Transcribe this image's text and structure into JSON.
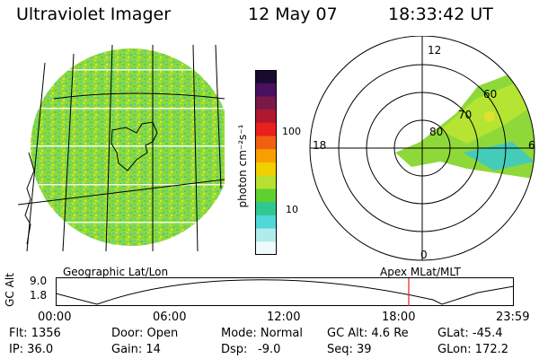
{
  "header": {
    "title": "Ultraviolet Imager",
    "date": "12 May 07",
    "time": "18:33:42 UT"
  },
  "colorbar": {
    "label": "photon cm⁻²s⁻¹",
    "ticks": [
      "100",
      "10"
    ],
    "colors": [
      "#1a0a2e",
      "#4a1060",
      "#7a1848",
      "#b01830",
      "#e82020",
      "#f06010",
      "#f8a000",
      "#f0d000",
      "#b8e030",
      "#60d030",
      "#30c890",
      "#50d8d8",
      "#b0ecec",
      "#f0fafa"
    ]
  },
  "polar": {
    "hours": {
      "top": "12",
      "left": "18",
      "right": "6",
      "bottom": "0"
    },
    "rings": [
      "80",
      "70",
      "60"
    ]
  },
  "labels": {
    "left_panel": "Geographic Lat/Lon",
    "right_panel": "Apex MLat/MLT"
  },
  "altitude_plot": {
    "ylabel": "GC Alt",
    "yticks": [
      "9.0",
      "1.8"
    ],
    "xticks": [
      "00:00",
      "06:00",
      "12:00",
      "18:00",
      "23:59"
    ],
    "marker_time": "18:33"
  },
  "info": {
    "flt": "Flt: 1356",
    "ip": "IP: 36.0",
    "door": "Door: Open",
    "gain": "Gain: 14",
    "mode": "Mode: Normal",
    "dsp_label": "Dsp:",
    "dsp_value": "-9.0",
    "gcalt": "GC Alt: 4.6 Re",
    "seq": "Seq: 39",
    "glat": "GLat: -45.4",
    "glon": "GLon: 172.2"
  }
}
